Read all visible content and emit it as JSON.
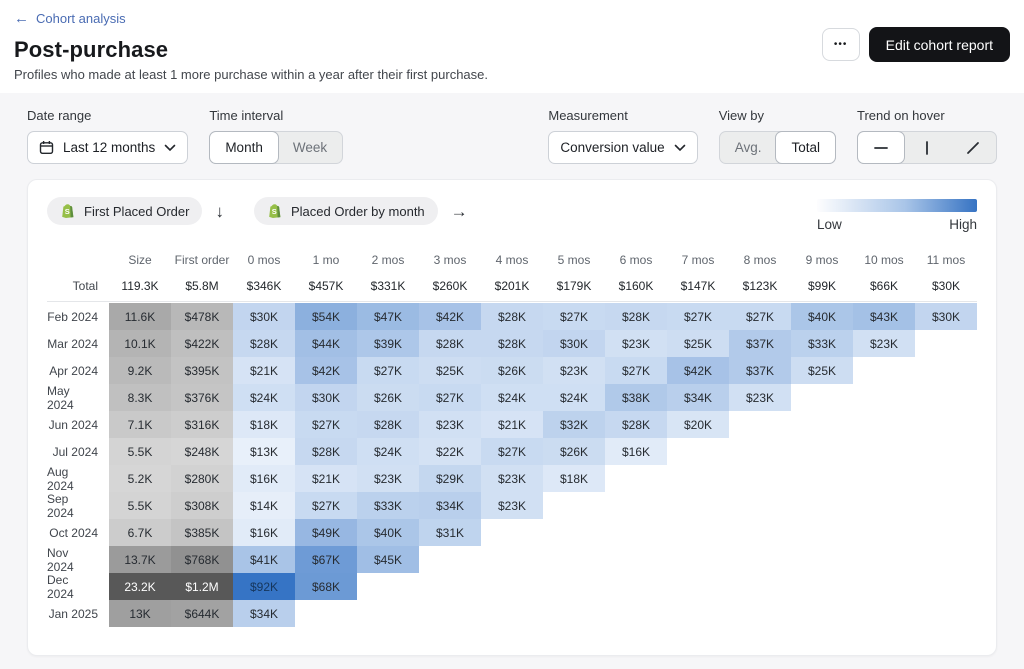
{
  "icons": {
    "back": "←",
    "down_arrow": "↓",
    "right_arrow": "→",
    "more": "•••"
  },
  "header": {
    "back_link": "Cohort analysis",
    "title": "Post-purchase",
    "subtitle": "Profiles who made at least 1 more purchase within a year after their first purchase.",
    "edit_button": "Edit cohort report"
  },
  "controls": {
    "date_range": {
      "label": "Date range",
      "value": "Last 12 months"
    },
    "time_interval": {
      "label": "Time interval",
      "options": [
        {
          "label": "Month",
          "selected": true
        },
        {
          "label": "Week",
          "selected": false
        }
      ]
    },
    "measurement": {
      "label": "Measurement",
      "value": "Conversion value"
    },
    "view_by": {
      "label": "View by",
      "options": [
        {
          "label": "Avg.",
          "selected": false
        },
        {
          "label": "Total",
          "selected": true
        }
      ]
    },
    "trend_on_hover": {
      "label": "Trend on hover",
      "options": [
        {
          "icon": "horizontal-line",
          "selected": true
        },
        {
          "icon": "vertical-line",
          "selected": false
        },
        {
          "icon": "diagonal-line",
          "selected": false
        }
      ]
    }
  },
  "chart": {
    "metric_x": "First Placed Order",
    "metric_y": "Placed Order by month",
    "legend": {
      "low": "Low",
      "high": "High",
      "low_color": "#fdfdfe",
      "high_color": "#3673c3"
    },
    "columns": [
      "Size",
      "First order",
      "0 mos",
      "1 mo",
      "2 mos",
      "3 mos",
      "4 mos",
      "5 mos",
      "6 mos",
      "7 mos",
      "8 mos",
      "9 mos",
      "10 mos",
      "11 mos"
    ],
    "total": {
      "label": "Total",
      "size": "119.3K",
      "first_order": "$5.8M",
      "values": [
        "$346K",
        "$457K",
        "$331K",
        "$260K",
        "$201K",
        "$179K",
        "$160K",
        "$147K",
        "$123K",
        "$99K",
        "$66K",
        "$30K"
      ]
    },
    "rows": [
      {
        "label": "Feb 2024",
        "size": "11.6K",
        "first_order": "$478K",
        "values": [
          "$30K",
          "$54K",
          "$47K",
          "$42K",
          "$28K",
          "$27K",
          "$28K",
          "$27K",
          "$27K",
          "$40K",
          "$43K",
          "$30K"
        ]
      },
      {
        "label": "Mar 2024",
        "size": "10.1K",
        "first_order": "$422K",
        "values": [
          "$28K",
          "$44K",
          "$39K",
          "$28K",
          "$28K",
          "$30K",
          "$23K",
          "$25K",
          "$37K",
          "$33K",
          "$23K"
        ]
      },
      {
        "label": "Apr 2024",
        "size": "9.2K",
        "first_order": "$395K",
        "values": [
          "$21K",
          "$42K",
          "$27K",
          "$25K",
          "$26K",
          "$23K",
          "$27K",
          "$42K",
          "$37K",
          "$25K"
        ]
      },
      {
        "label": "May 2024",
        "size": "8.3K",
        "first_order": "$376K",
        "values": [
          "$24K",
          "$30K",
          "$26K",
          "$27K",
          "$24K",
          "$24K",
          "$38K",
          "$34K",
          "$23K"
        ]
      },
      {
        "label": "Jun 2024",
        "size": "7.1K",
        "first_order": "$316K",
        "values": [
          "$18K",
          "$27K",
          "$28K",
          "$23K",
          "$21K",
          "$32K",
          "$28K",
          "$20K"
        ]
      },
      {
        "label": "Jul 2024",
        "size": "5.5K",
        "first_order": "$248K",
        "values": [
          "$13K",
          "$28K",
          "$24K",
          "$22K",
          "$27K",
          "$26K",
          "$16K"
        ]
      },
      {
        "label": "Aug 2024",
        "size": "5.2K",
        "first_order": "$280K",
        "values": [
          "$16K",
          "$21K",
          "$23K",
          "$29K",
          "$23K",
          "$18K"
        ]
      },
      {
        "label": "Sep 2024",
        "size": "5.5K",
        "first_order": "$308K",
        "values": [
          "$14K",
          "$27K",
          "$33K",
          "$34K",
          "$23K"
        ]
      },
      {
        "label": "Oct 2024",
        "size": "6.7K",
        "first_order": "$385K",
        "values": [
          "$16K",
          "$49K",
          "$40K",
          "$31K"
        ]
      },
      {
        "label": "Nov 2024",
        "size": "13.7K",
        "first_order": "$768K",
        "values": [
          "$41K",
          "$67K",
          "$45K"
        ]
      },
      {
        "label": "Dec 2024",
        "size": "23.2K",
        "first_order": "$1.2M",
        "values": [
          "$92K",
          "$68K"
        ]
      },
      {
        "label": "Jan 2025",
        "size": "13K",
        "first_order": "$644K",
        "values": [
          "$34K"
        ]
      }
    ]
  }
}
